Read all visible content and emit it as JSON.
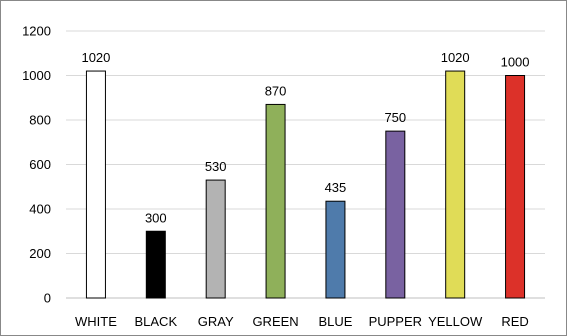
{
  "chart_data": {
    "type": "bar",
    "categories": [
      "WHITE",
      "BLACK",
      "GRAY",
      "GREEN",
      "BLUE",
      "PUPPER",
      "YELLOW",
      "RED"
    ],
    "values": [
      1020,
      300,
      530,
      870,
      435,
      750,
      1020,
      1000
    ],
    "data_labels": [
      "1020",
      "300",
      "530",
      "870",
      "435",
      "750",
      "1020",
      "1000"
    ],
    "bar_colors": [
      "#ffffff",
      "#000000",
      "#b3b3b3",
      "#8fb05a",
      "#4f7bab",
      "#7962a1",
      "#e0dc57",
      "#dc3129"
    ],
    "bar_border_color": "#000000",
    "title": "",
    "xlabel": "",
    "ylabel": "",
    "ylim": [
      0,
      1200
    ],
    "yticks": [
      0,
      200,
      400,
      600,
      800,
      1000,
      1200
    ],
    "ytick_labels": [
      "0",
      "200",
      "400",
      "600",
      "800",
      "1000",
      "1200"
    ],
    "grid": true,
    "legend": "none"
  }
}
